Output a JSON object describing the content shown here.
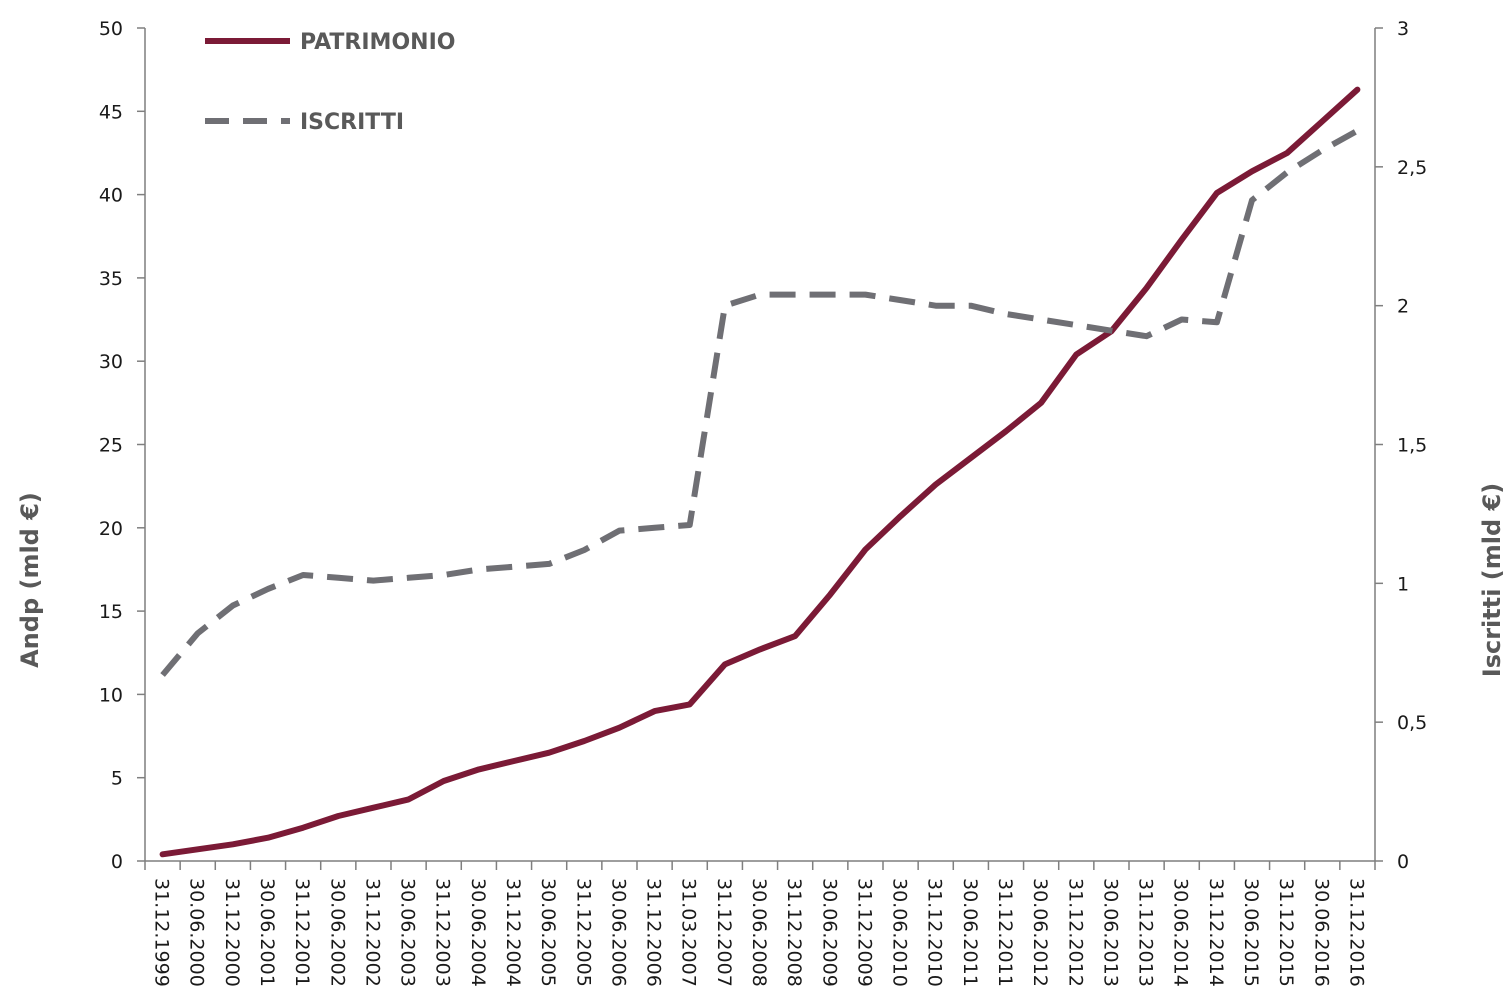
{
  "chart_data": {
    "type": "line",
    "title": "",
    "x": [
      "31.12.1999",
      "30.06.2000",
      "31.12.2000",
      "30.06.2001",
      "31.12.2001",
      "30.06.2002",
      "31.12.2002",
      "30.06.2003",
      "31.12.2003",
      "30.06.2004",
      "31.12.2004",
      "30.06.2005",
      "31.12.2005",
      "30.06.2006",
      "31.12.2006",
      "31.03.2007",
      "31.12.2007",
      "30.06.2008",
      "31.12.2008",
      "30.06.2009",
      "31.12.2009",
      "30.06.2010",
      "31.12.2010",
      "30.06.2011",
      "31.12.2011",
      "30.06.2012",
      "31.12.2012",
      "30.06.2013",
      "31.12.2013",
      "30.06.2014",
      "31.12.2014",
      "30.06.2015",
      "31.12.2015",
      "30.06.2016",
      "31.12.2016"
    ],
    "x_tick_labels": [
      "31.12.1999",
      "30.06.2000",
      "31.12.2000",
      "30.06.2001",
      "31.12.2001",
      "30.06.2002",
      "31.12.2002",
      "30.06.2003",
      "31.12.2003",
      "30.06.2004",
      "31.12.2004",
      "30.06.2005",
      "31.12.2005",
      "30.06.2006",
      "31.12.2006",
      "31.03.2007",
      "31.12.2007",
      "30.06.2008",
      "31.12.2008",
      "30.06.2009",
      "31.12.2009",
      "30.06.2010",
      "31.12.2010",
      "30.06.2011",
      "31.12.2011",
      "30.06.2012",
      "31.12.2012",
      "30.06.2013",
      "31.12.2013",
      "30.06.2014",
      "31.12.2014",
      "30.06.2015",
      "31.12.2015",
      "30.06.2016",
      "31.12.2016"
    ],
    "series": [
      {
        "name": "PATRIMONIO",
        "axis": "left",
        "color": "#7b1a36",
        "style": "solid",
        "values": [
          0.4,
          0.7,
          1.0,
          1.4,
          2.0,
          2.7,
          3.2,
          3.7,
          4.8,
          5.5,
          6.0,
          6.5,
          7.2,
          8.0,
          9.0,
          9.4,
          11.8,
          12.7,
          13.5,
          16.0,
          18.7,
          20.7,
          22.6,
          24.2,
          25.8,
          27.5,
          30.4,
          31.8,
          34.4,
          37.3,
          40.1,
          41.4,
          42.5,
          44.4,
          46.3
        ]
      },
      {
        "name": "ISCRITTI",
        "axis": "right",
        "color": "#6f6f74",
        "style": "dashed",
        "values": [
          0.67,
          0.82,
          0.92,
          0.98,
          1.03,
          1.02,
          1.01,
          1.02,
          1.03,
          1.05,
          1.06,
          1.07,
          1.12,
          1.19,
          1.2,
          1.21,
          2.0,
          2.04,
          2.04,
          2.04,
          2.04,
          2.02,
          2.0,
          2.0,
          1.97,
          1.95,
          1.93,
          1.91,
          1.89,
          1.95,
          1.94,
          2.38,
          2.48,
          2.56,
          2.63
        ]
      }
    ],
    "y_left": {
      "label": "Andp (mld €)",
      "ylim": [
        0,
        50
      ],
      "ticks": [
        "0",
        "5",
        "10",
        "15",
        "20",
        "25",
        "30",
        "35",
        "40",
        "45",
        "50"
      ]
    },
    "y_right": {
      "label": "Iscritti (mld €)",
      "ylim": [
        0,
        3
      ],
      "ticks": [
        "0",
        "0,5",
        "1",
        "1,5",
        "2",
        "2,5",
        "3"
      ]
    },
    "grid": false,
    "legend": {
      "position": "top-left",
      "entries": [
        "PATRIMONIO",
        "ISCRITTI"
      ]
    },
    "axis_color": "#7f7f7f"
  }
}
